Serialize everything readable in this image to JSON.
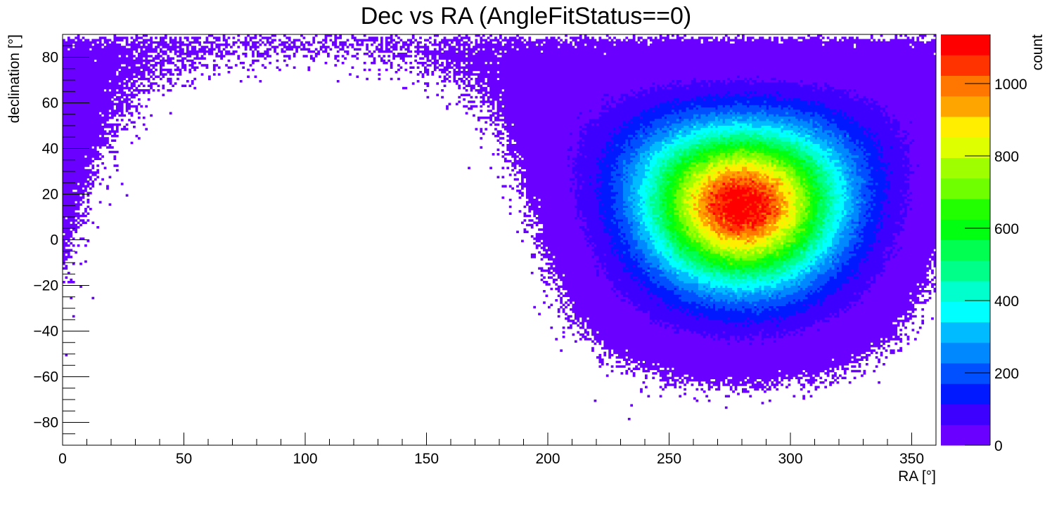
{
  "chart_data": {
    "type": "heatmap",
    "title": "Dec vs RA (AngleFitStatus==0)",
    "xlabel": "RA [°]",
    "ylabel": "declination [°]",
    "zlabel": "count",
    "xlim": [
      0,
      360
    ],
    "ylim": [
      -90,
      90
    ],
    "zlim": [
      0,
      1136
    ],
    "bin_size_deg": {
      "ra": 1,
      "dec": 1
    },
    "xticks": [
      0,
      50,
      100,
      150,
      200,
      250,
      300,
      350
    ],
    "yticks": [
      -80,
      -60,
      -40,
      -20,
      0,
      20,
      40,
      60,
      80
    ],
    "zticks": [
      0,
      200,
      400,
      600,
      800,
      1000
    ],
    "grid": false,
    "distribution": {
      "description": "counts per 1x1 deg bin, peaked around the source position; falls off with angular distance on the sky",
      "peak_ra": 280,
      "peak_dec": 18,
      "peak_count": 1130,
      "core_sigma_deg": 25,
      "core_amplitude": 1050,
      "halo_sigma_deg": 38,
      "halo_amplitude": 80,
      "edge_cutoff_deg": 76
    },
    "palette": [
      "#6a00ff",
      "#3d00ff",
      "#0019ff",
      "#0050ff",
      "#0088ff",
      "#00bbff",
      "#00ffff",
      "#00ffcc",
      "#00ff88",
      "#00ff50",
      "#00ff11",
      "#22ff00",
      "#6fff00",
      "#9fff00",
      "#ddff00",
      "#ffee00",
      "#ffa500",
      "#ff7700",
      "#ff3300",
      "#ff0000"
    ]
  }
}
